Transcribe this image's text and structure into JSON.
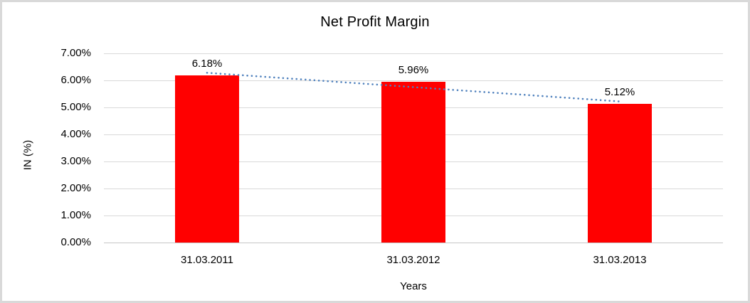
{
  "frame": {
    "background": "#ffffff",
    "border_color": "#d9d9d9"
  },
  "chart_data": {
    "type": "bar",
    "title": "Net Profit Margin",
    "xlabel": "Years",
    "ylabel": "IN (%)",
    "categories": [
      "31.03.2011",
      "31.03.2012",
      "31.03.2013"
    ],
    "values": [
      6.18,
      5.96,
      5.12
    ],
    "data_labels": [
      "6.18%",
      "5.96%",
      "5.12%"
    ],
    "ylim": [
      0,
      7
    ],
    "ytick_step": 1,
    "ytick_labels": [
      "0.00%",
      "1.00%",
      "2.00%",
      "3.00%",
      "4.00%",
      "5.00%",
      "6.00%",
      "7.00%"
    ],
    "grid": true,
    "legend": "none",
    "bar_color": "#ff0000",
    "gridline_color": "#d9d9d9",
    "axis_line_color": "#c6c6c6",
    "trendline": {
      "type": "linear",
      "style": "dotted",
      "color": "#4f81bd",
      "endpoints": [
        6.28,
        5.22
      ]
    }
  }
}
